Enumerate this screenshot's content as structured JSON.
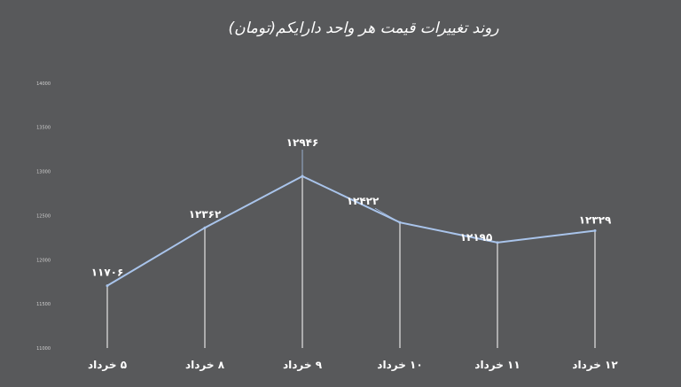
{
  "chart_data": {
    "type": "line",
    "title": "روند تغییرات قیمت هر واحد دارایکم(تومان)",
    "xlabel": "",
    "ylabel": "",
    "categories": [
      "5 خرداد",
      "8 خرداد",
      "9 خرداد",
      "10 خرداد",
      "11 خرداد",
      "12 خرداد"
    ],
    "values": [
      11706,
      12362,
      12946,
      12422,
      12195,
      12329
    ],
    "data_labels": [
      "۱۱۷۰۶",
      "۱۲۳۶۲",
      "۱۲۹۴۶",
      "۱۲۴۲۲",
      "۱۲۱۹۵",
      "۱۲۳۲۹"
    ],
    "x_tick_labels": [
      "۵ خرداد",
      "۸ خرداد",
      "۹ خرداد",
      "۱۰ خرداد",
      "۱۱ خرداد",
      "۱۲ خرداد"
    ],
    "y_ticks": [
      11000,
      11500,
      12000,
      12500,
      13000,
      13500,
      14000
    ],
    "y_tick_labels": [
      "11000",
      "11500",
      "12000",
      "12500",
      "13000",
      "13500",
      "14000"
    ],
    "ylim": [
      11000,
      14500
    ],
    "grid": false,
    "legend": "none",
    "colors": {
      "line": "#a9c4eb",
      "drop_line": "#ffffff",
      "background": "#58595b",
      "text": "#ffffff"
    }
  }
}
